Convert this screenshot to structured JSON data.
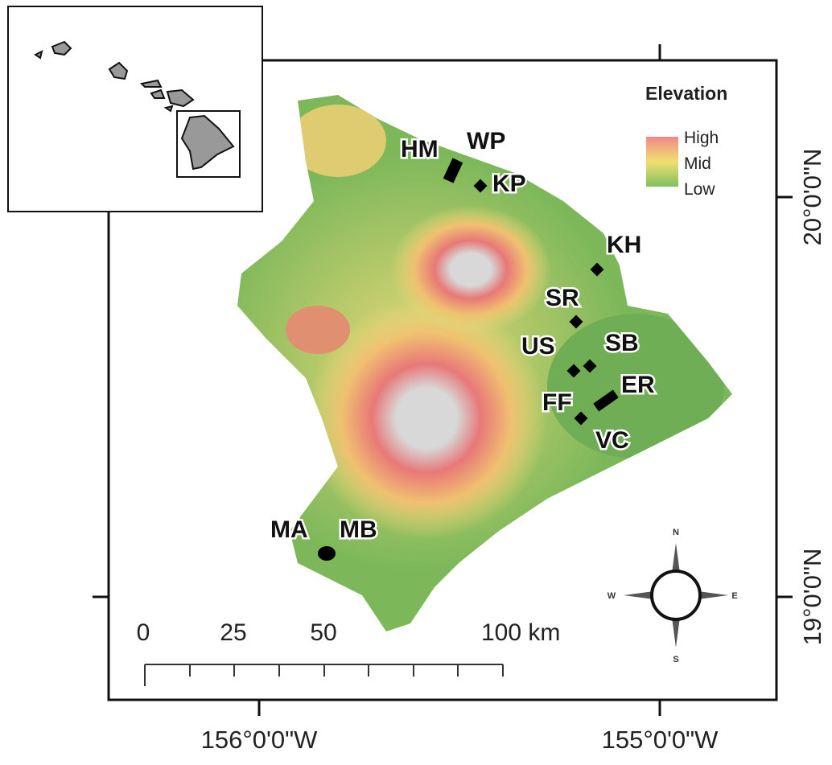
{
  "legend": {
    "title": "Elevation",
    "items": [
      "High",
      "Mid",
      "Low"
    ]
  },
  "sites": [
    "HM",
    "WP",
    "KP",
    "KH",
    "SR",
    "US",
    "SB",
    "ER",
    "FF",
    "VC",
    "MA",
    "MB"
  ],
  "scale_bar": [
    "0",
    "25",
    "50",
    "100 km"
  ],
  "longitude_labels": [
    "156°0'0\"W",
    "155°0'0\"W"
  ],
  "latitude_labels": [
    "20°0'0\"N",
    "19°0'0\"N"
  ],
  "compass": [
    "N",
    "W",
    "E",
    "S"
  ]
}
